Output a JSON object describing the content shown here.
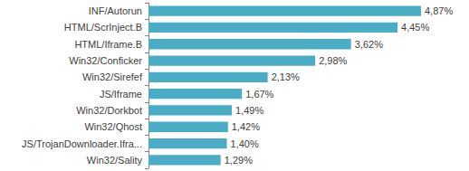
{
  "chart_data": {
    "type": "bar",
    "orientation": "horizontal",
    "categories": [
      "INF/Autorun",
      "HTML/ScrInject.B",
      "HTML/Iframe.B",
      "Win32/Conficker",
      "Win32/Sirefef",
      "JS/Iframe",
      "Win32/Dorkbot",
      "Win32/Qhost",
      "JS/TrojanDownloader.Ifra...",
      "Win32/Sality"
    ],
    "values": [
      4.87,
      4.45,
      3.62,
      2.98,
      2.13,
      1.67,
      1.49,
      1.42,
      1.4,
      1.29
    ],
    "value_labels": [
      "4,87%",
      "4,45%",
      "3,62%",
      "2,98%",
      "2,13%",
      "1,67%",
      "1,49%",
      "1,42%",
      "1,40%",
      "1,29%"
    ],
    "color": "#4bacc6",
    "xlim": [
      0,
      5
    ],
    "grid": false,
    "data_labels": true,
    "tick_labels": "y"
  }
}
